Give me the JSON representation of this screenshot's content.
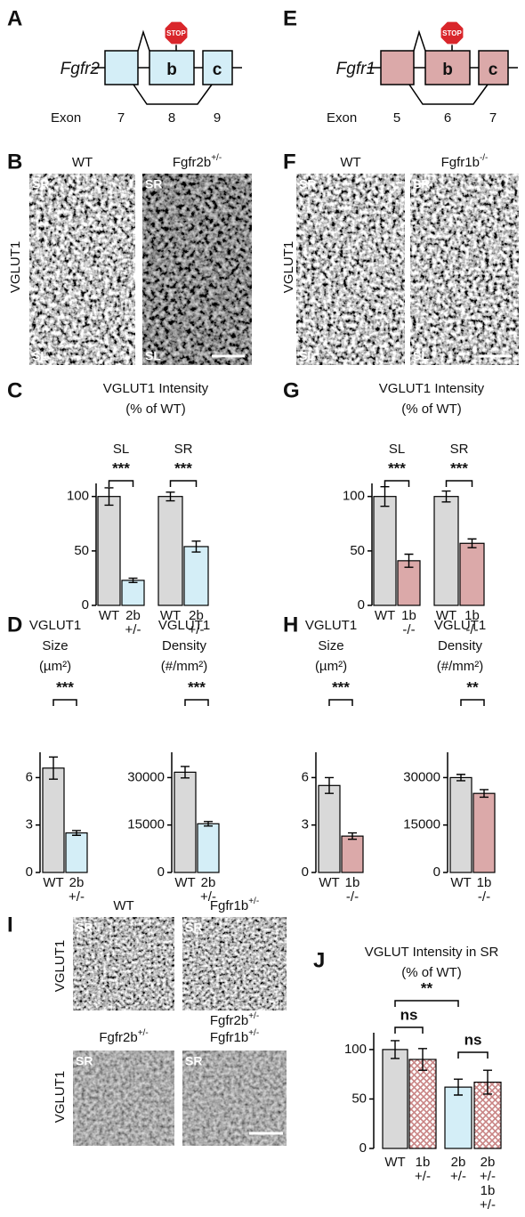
{
  "gene_diagrams": [
    {
      "letter": "A",
      "gene": "Fgfr2",
      "stop": "STOP",
      "exon_label": "Exon",
      "exons": [
        "7",
        "8",
        "9"
      ],
      "boxes": [
        "b",
        "c"
      ],
      "color": "#d4eef7"
    },
    {
      "letter": "E",
      "gene": "Fgfr1",
      "stop": "STOP",
      "exon_label": "Exon",
      "exons": [
        "5",
        "6",
        "7"
      ],
      "boxes": [
        "b",
        "c"
      ],
      "color": "#dba9a9"
    }
  ],
  "micrographs": [
    {
      "letter": "B",
      "rows": [
        {
          "y_label": "VGLUT1",
          "images": [
            {
              "title": [
                {
                  "text": "WT"
                }
              ],
              "corners": [
                "SR",
                "SL"
              ]
            },
            {
              "title": [
                {
                  "text": "Fgfr2b",
                  "sup": "+/-"
                }
              ],
              "corners": [
                "SR",
                "SL"
              ]
            }
          ]
        }
      ]
    },
    {
      "letter": "F",
      "rows": [
        {
          "y_label": "VGLUT1",
          "images": [
            {
              "title": [
                {
                  "text": "WT"
                }
              ],
              "corners": [
                "SR",
                "SL"
              ]
            },
            {
              "title": [
                {
                  "text": "Fgfr1b",
                  "sup": "-/-"
                }
              ],
              "corners": [
                "SR",
                "SL"
              ]
            }
          ]
        }
      ]
    },
    {
      "letter": "I",
      "rows": [
        {
          "y_label": "VGLUT1",
          "images": [
            {
              "title": [
                {
                  "text": "WT"
                }
              ],
              "corners": [
                "SR"
              ]
            },
            {
              "title": [
                {
                  "text": "Fgfr1b",
                  "sup": "+/-"
                }
              ],
              "corners": [
                "SR"
              ]
            }
          ]
        },
        {
          "y_label": "VGLUT1",
          "images": [
            {
              "title": [
                {
                  "text": "Fgfr2b",
                  "sup": "+/-"
                }
              ],
              "corners": [
                "SR"
              ]
            },
            {
              "title": [
                {
                  "text": "Fgfr2b",
                  "sup": "+/-"
                },
                {
                  "text": "Fgfr1b",
                  "sup": "+/-"
                }
              ],
              "corners": [
                "SR"
              ]
            }
          ]
        }
      ]
    }
  ],
  "chart_data": [
    {
      "type": "bar",
      "letter": "C",
      "title": [
        "VGLUT1 Intensity",
        "(% of WT)"
      ],
      "groups": [
        "SL",
        "SR"
      ],
      "significance": [
        "***",
        "***"
      ],
      "categories": [
        [
          "WT"
        ],
        [
          "2b",
          "+/-"
        ],
        [
          "WT"
        ],
        [
          "2b",
          "+/-"
        ]
      ],
      "values": [
        100,
        23,
        100,
        54
      ],
      "errors": [
        8,
        2,
        4,
        5
      ],
      "colors": [
        "#d9d9d9",
        "#d4eef7",
        "#d9d9d9",
        "#d4eef7"
      ],
      "ylim": [
        0,
        112
      ],
      "yticks": [
        0,
        50,
        100
      ]
    },
    {
      "type": "bar",
      "letter": "D",
      "title": [
        "VGLUT1",
        "Size",
        "(µm²)"
      ],
      "significance": [
        "***"
      ],
      "categories": [
        [
          "WT"
        ],
        [
          "2b",
          "+/-"
        ]
      ],
      "values": [
        6.6,
        2.5
      ],
      "errors": [
        0.7,
        0.15
      ],
      "colors": [
        "#d9d9d9",
        "#d4eef7"
      ],
      "ylim": [
        0,
        7.6
      ],
      "yticks": [
        0,
        3,
        6
      ]
    },
    {
      "type": "bar",
      "title": [
        "VGLUT1",
        "Density",
        "(#/mm²)"
      ],
      "significance": [
        "***"
      ],
      "categories": [
        [
          "WT"
        ],
        [
          "2b",
          "+/-"
        ]
      ],
      "values": [
        31700,
        15400
      ],
      "errors": [
        1800,
        700
      ],
      "colors": [
        "#d9d9d9",
        "#d4eef7"
      ],
      "ylim": [
        0,
        38000
      ],
      "yticks": [
        0,
        15000,
        30000
      ]
    },
    {
      "type": "bar",
      "letter": "G",
      "title": [
        "VGLUT1 Intensity",
        "(% of WT)"
      ],
      "groups": [
        "SL",
        "SR"
      ],
      "significance": [
        "***",
        "***"
      ],
      "categories": [
        [
          "WT"
        ],
        [
          "1b",
          "-/-"
        ],
        [
          "WT"
        ],
        [
          "1b",
          "-/-"
        ]
      ],
      "values": [
        100,
        41,
        100,
        57
      ],
      "errors": [
        9,
        6,
        5,
        4
      ],
      "colors": [
        "#d9d9d9",
        "#dba9a9",
        "#d9d9d9",
        "#dba9a9"
      ],
      "ylim": [
        0,
        112
      ],
      "yticks": [
        0,
        50,
        100
      ]
    },
    {
      "type": "bar",
      "letter": "H",
      "title": [
        "VGLUT1",
        "Size",
        "(µm²)"
      ],
      "significance": [
        "***"
      ],
      "categories": [
        [
          "WT"
        ],
        [
          "1b",
          "-/-"
        ]
      ],
      "values": [
        5.5,
        2.3
      ],
      "errors": [
        0.5,
        0.2
      ],
      "colors": [
        "#d9d9d9",
        "#dba9a9"
      ],
      "ylim": [
        0,
        7.6
      ],
      "yticks": [
        0,
        3,
        6
      ]
    },
    {
      "type": "bar",
      "title": [
        "VGLUT1",
        "Density",
        "(#/mm²)"
      ],
      "significance": [
        "**"
      ],
      "categories": [
        [
          "WT"
        ],
        [
          "1b",
          "-/-"
        ]
      ],
      "values": [
        30000,
        25000
      ],
      "errors": [
        1000,
        1200
      ],
      "colors": [
        "#d9d9d9",
        "#dba9a9"
      ],
      "ylim": [
        0,
        38000
      ],
      "yticks": [
        0,
        15000,
        30000
      ]
    },
    {
      "type": "bar",
      "letter": "J",
      "title": [
        "VGLUT Intensity in SR",
        "(% of WT)"
      ],
      "significance": [
        "**",
        "ns",
        "ns"
      ],
      "categories": [
        [
          "WT"
        ],
        [
          "1b",
          "+/-"
        ],
        [
          "2b",
          "+/-"
        ],
        [
          "2b",
          "+/-",
          "1b",
          "+/-"
        ]
      ],
      "values": [
        100,
        90,
        62,
        67
      ],
      "errors": [
        9,
        11,
        8,
        12
      ],
      "colors": [
        "#d9d9d9",
        "#c98585",
        "#d4eef7",
        "#c98585"
      ],
      "hatched": [
        false,
        true,
        false,
        true
      ],
      "ylim": [
        0,
        117
      ],
      "yticks": [
        0,
        50,
        100
      ]
    }
  ]
}
